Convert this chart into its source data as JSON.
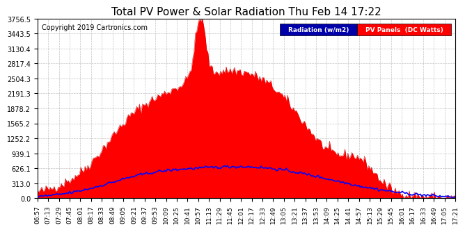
{
  "title": "Total PV Power & Solar Radiation Thu Feb 14 17:22",
  "copyright": "Copyright 2019 Cartronics.com",
  "legend_radiation": "Radiation (w/m2)",
  "legend_pv": "PV Panels  (DC Watts)",
  "y_max": 3756.5,
  "y_ticks": [
    0.0,
    313.0,
    626.1,
    939.1,
    1252.2,
    1565.2,
    1878.2,
    2191.3,
    2504.3,
    2817.4,
    3130.4,
    3443.5,
    3756.5
  ],
  "background_color": "#ffffff",
  "plot_bg_color": "#ffffff",
  "grid_color": "#aaaaaa",
  "pv_fill_color": "#ff0000",
  "pv_line_color": "#cc0000",
  "radiation_line_color": "#0000ff",
  "x_labels": [
    "06:57",
    "07:13",
    "07:29",
    "07:45",
    "08:01",
    "08:17",
    "08:33",
    "08:49",
    "09:05",
    "09:21",
    "09:37",
    "09:53",
    "10:09",
    "10:25",
    "10:41",
    "10:57",
    "11:13",
    "11:29",
    "11:45",
    "12:01",
    "12:17",
    "12:33",
    "12:49",
    "13:05",
    "13:21",
    "13:37",
    "13:53",
    "14:09",
    "14:25",
    "14:41",
    "14:57",
    "15:13",
    "15:29",
    "15:45",
    "16:01",
    "16:17",
    "16:33",
    "16:49",
    "17:05",
    "17:21"
  ]
}
